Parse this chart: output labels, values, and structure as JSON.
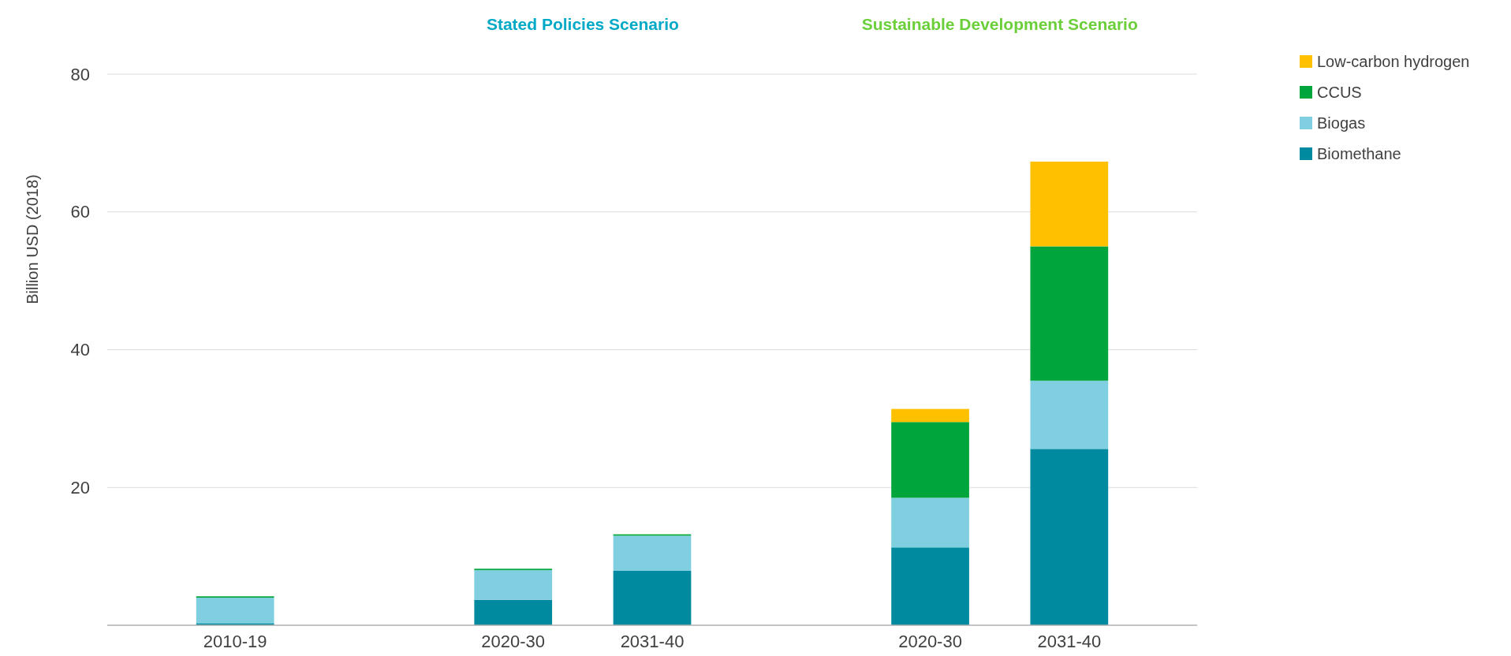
{
  "chart_data": {
    "type": "bar",
    "stacked": true,
    "ylabel": "Billion USD (2018)",
    "categories": [
      "2010-19",
      null,
      "2020-30",
      "2031-40",
      null,
      "2020-30",
      "2031-40"
    ],
    "series": [
      {
        "name": "Biomethane",
        "color": "#008aa0",
        "values": [
          0.3,
          null,
          3.7,
          7.9,
          null,
          11.3,
          25.6
        ]
      },
      {
        "name": "Biogas",
        "color": "#7fcfe0",
        "values": [
          3.7,
          null,
          4.3,
          5.1,
          null,
          7.2,
          9.9
        ]
      },
      {
        "name": "CCUS",
        "color": "#00a63c",
        "values": [
          0.2,
          null,
          0.2,
          0.2,
          null,
          11.0,
          19.5
        ]
      },
      {
        "name": "Low-carbon hydrogen",
        "color": "#ffc000",
        "values": [
          0,
          null,
          0,
          0,
          null,
          1.9,
          12.3
        ]
      }
    ],
    "annotations": [
      "Stated Policies Scenario",
      "Sustainable Development Scenario"
    ],
    "ylim": [
      0,
      80
    ],
    "yticks": [
      20,
      40,
      60,
      80
    ],
    "grid": "y",
    "legend": "top right"
  }
}
